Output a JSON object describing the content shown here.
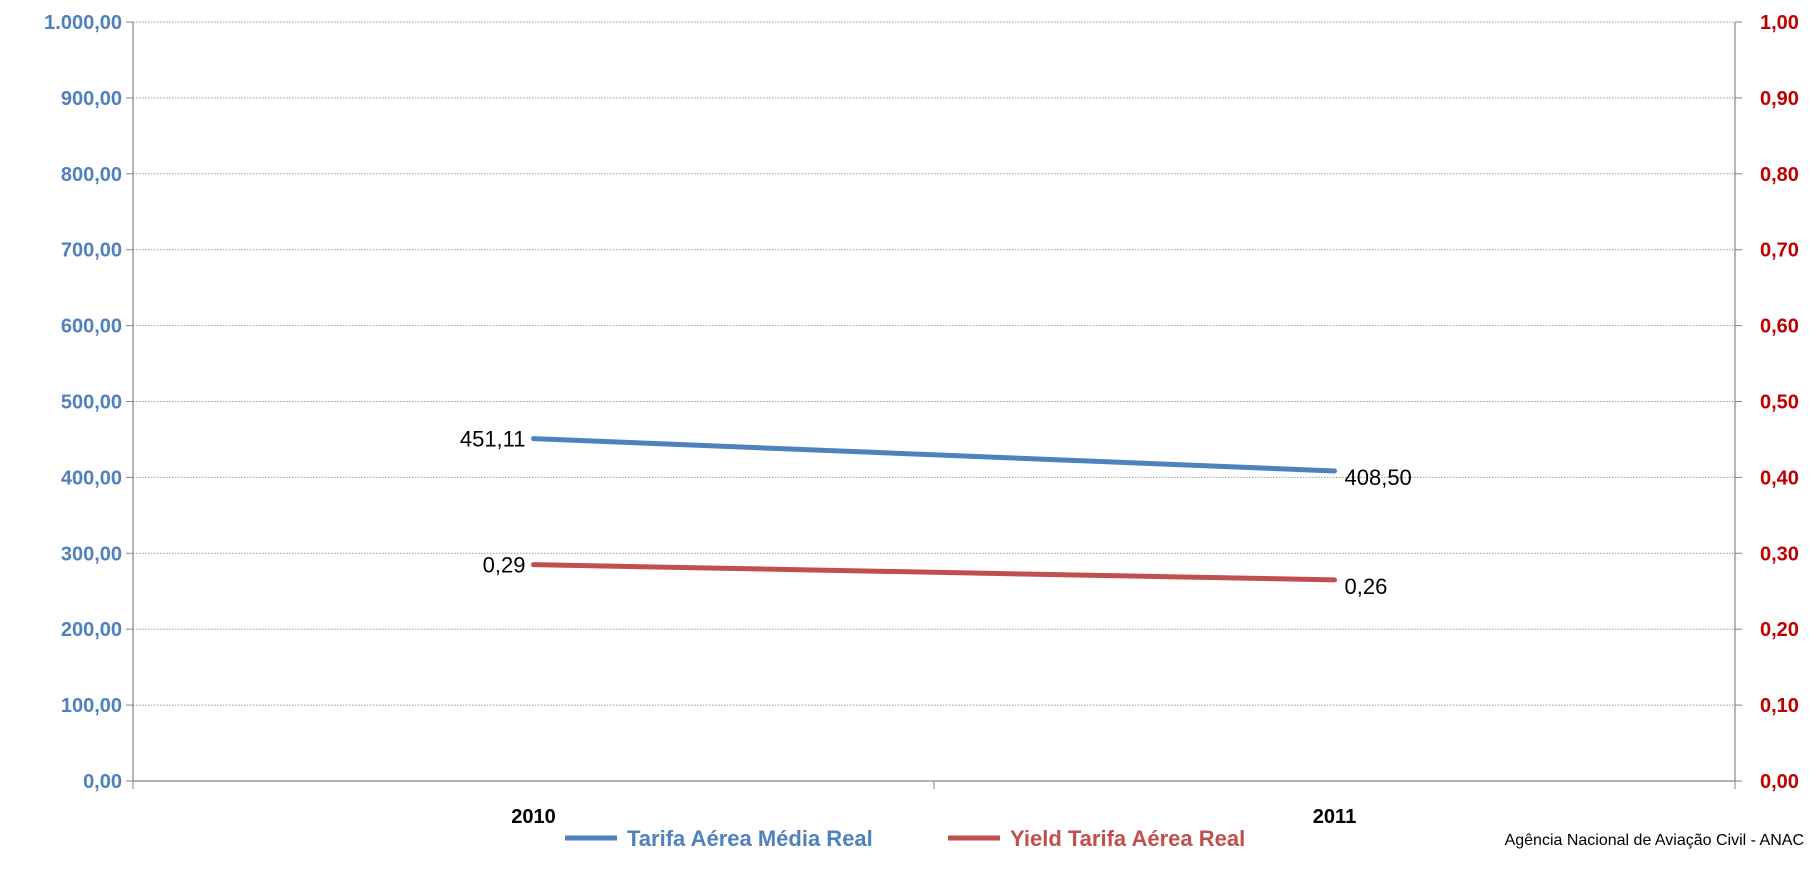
{
  "colors": {
    "primary": "#4f81bd",
    "secondary": "#c0504d",
    "left_axis_text": "#4f81bd",
    "right_axis_text": "#c00000"
  },
  "chart_data": {
    "type": "line",
    "categories": [
      "2010",
      "2011"
    ],
    "series": [
      {
        "name": "Tarifa Aérea Média Real",
        "axis": "left",
        "values": [
          451.11,
          408.5
        ],
        "labels": [
          "451,11",
          "408,50"
        ]
      },
      {
        "name": "Yield Tarifa Aérea Real",
        "axis": "right",
        "values": [
          0.285,
          0.265
        ],
        "labels": [
          "0,29",
          "0,26"
        ]
      }
    ],
    "y_left": {
      "ylim": [
        0,
        1000
      ],
      "ticks": [
        "0,00",
        "100,00",
        "200,00",
        "300,00",
        "400,00",
        "500,00",
        "600,00",
        "700,00",
        "800,00",
        "900,00",
        "1.000,00"
      ]
    },
    "y_right": {
      "ylim": [
        0,
        1
      ],
      "ticks": [
        "0,00",
        "0,10",
        "0,20",
        "0,30",
        "0,40",
        "0,50",
        "0,60",
        "0,70",
        "0,80",
        "0,90",
        "1,00"
      ]
    },
    "grid": true,
    "legend": "bottom"
  },
  "source": "Agência Nacional de Aviação Civil - ANAC"
}
